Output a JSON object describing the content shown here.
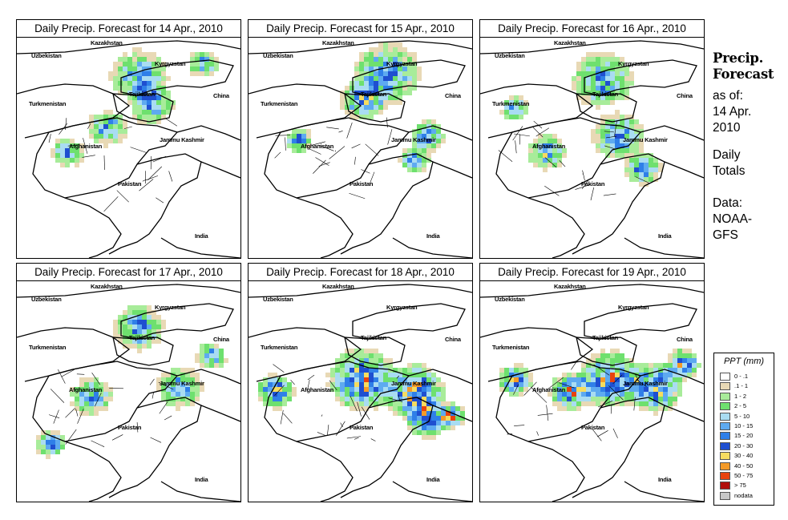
{
  "panels": [
    {
      "title": "Daily Precip. Forecast for  14 Apr., 2010",
      "intensity": 0.45
    },
    {
      "title": "Daily Precip. Forecast for  15 Apr., 2010",
      "intensity": 0.6
    },
    {
      "title": "Daily Precip. Forecast for  16 Apr., 2010",
      "intensity": 0.55
    },
    {
      "title": "Daily Precip. Forecast for  17 Apr., 2010",
      "intensity": 0.45
    },
    {
      "title": "Daily Precip. Forecast for  18 Apr., 2010",
      "intensity": 0.95
    },
    {
      "title": "Daily Precip. Forecast for  19 Apr., 2010",
      "intensity": 0.85
    }
  ],
  "map_labels": {
    "kazakhstan": "Kazakhstan",
    "uzbekistan": "Uzbekistan",
    "kyrgyzstan": "Kyrgyzstan",
    "tajikistan": "Tajikistan",
    "china": "China",
    "turkmenistan": "Turkmenistan",
    "afghanistan": "Afghanistan",
    "jammu_kashmir": "Jammu Kashmir",
    "pakistan": "Pakistan",
    "india": "India"
  },
  "sidebar": {
    "title_line1": "Precip.",
    "title_line2": "Forecast",
    "asof_line1": "as of:",
    "asof_line2": "14 Apr.",
    "asof_line3": "2010",
    "totals_line1": "Daily",
    "totals_line2": "Totals",
    "data_line1": "Data:",
    "data_line2": "NOAA-",
    "data_line3": "GFS"
  },
  "legend": {
    "title": "PPT (mm)",
    "items": [
      {
        "label": "0 - .1",
        "color": "#ffffff"
      },
      {
        "label": ".1 - 1",
        "color": "#e8d9b5"
      },
      {
        "label": "1 - 2",
        "color": "#a8ec9a"
      },
      {
        "label": "2 - 5",
        "color": "#6ee06e"
      },
      {
        "label": "5 - 10",
        "color": "#a9dcf2"
      },
      {
        "label": "10 - 15",
        "color": "#5eaaf0"
      },
      {
        "label": "15 - 20",
        "color": "#2f7fe8"
      },
      {
        "label": "20 - 30",
        "color": "#1f4fd0"
      },
      {
        "label": "30 - 40",
        "color": "#f6dc60"
      },
      {
        "label": "40 - 50",
        "color": "#f49a28"
      },
      {
        "label": "50 - 75",
        "color": "#e8420e"
      },
      {
        "label": "> 75",
        "color": "#b00f0a"
      },
      {
        "label": "nodata",
        "color": "#c8c8c8"
      }
    ]
  }
}
